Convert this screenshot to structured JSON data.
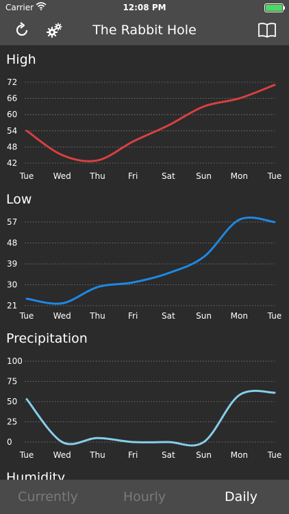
{
  "status_bar": {
    "carrier": "Carrier",
    "time": "12:08 PM"
  },
  "nav": {
    "title": "The Rabbit Hole",
    "icons": [
      "refresh-icon",
      "gears-icon",
      "book-icon"
    ]
  },
  "sections": {
    "high": "High",
    "low": "Low",
    "precipitation": "Precipitation",
    "humidity": "Humidity"
  },
  "colors": {
    "high": "#d94040",
    "low": "#1e88e5",
    "precipitation": "#87ceeb"
  },
  "tabs": [
    "Currently",
    "Hourly",
    "Daily"
  ],
  "chart_data": [
    {
      "type": "line",
      "title": "High",
      "categories": [
        "Tue",
        "Wed",
        "Thu",
        "Fri",
        "Sat",
        "Sun",
        "Mon",
        "Tue"
      ],
      "values": [
        54,
        45,
        43,
        50,
        56,
        63,
        66,
        71
      ],
      "yticks": [
        72,
        66,
        60,
        54,
        48,
        42
      ],
      "ylim": [
        42,
        72
      ],
      "grid": true
    },
    {
      "type": "line",
      "title": "Low",
      "categories": [
        "Tue",
        "Wed",
        "Thu",
        "Fri",
        "Sat",
        "Sun",
        "Mon",
        "Tue"
      ],
      "values": [
        24,
        22,
        29,
        31,
        35,
        42,
        58,
        57
      ],
      "yticks": [
        57,
        48,
        39,
        30,
        21
      ],
      "ylim": [
        21,
        57
      ],
      "grid": true
    },
    {
      "type": "line",
      "title": "Precipitation",
      "categories": [
        "Tue",
        "Wed",
        "Thu",
        "Fri",
        "Sat",
        "Sun",
        "Mon",
        "Tue"
      ],
      "values": [
        53,
        0,
        5,
        0,
        0,
        0,
        58,
        61
      ],
      "yticks": [
        100,
        75,
        50,
        25,
        0
      ],
      "ylim": [
        0,
        100
      ],
      "grid": true
    }
  ]
}
